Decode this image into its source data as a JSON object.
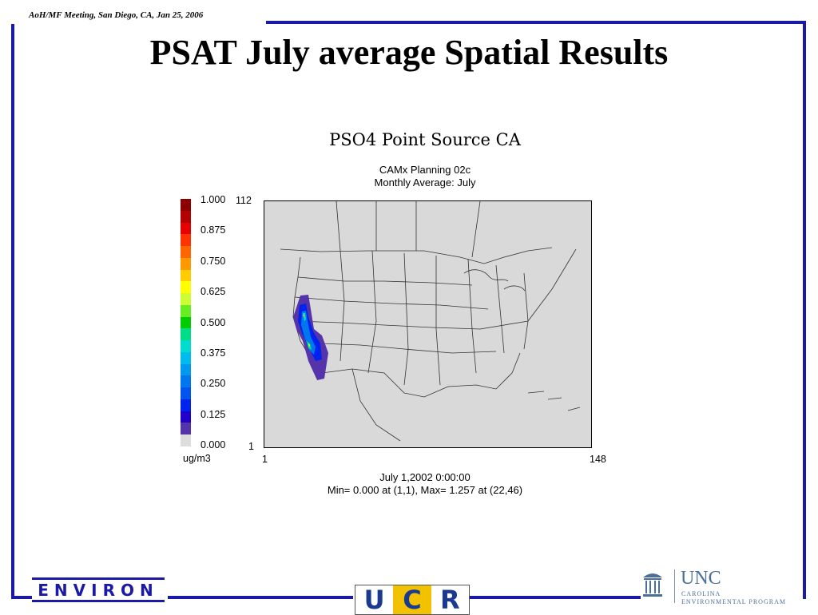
{
  "header": {
    "meeting_note": "AoH/MF Meeting, San Diego, CA,  Jan 25, 2006",
    "title": "PSAT July average Spatial Results"
  },
  "map": {
    "title": "PSO4 Point Source CA",
    "subtitle_1": "CAMx Planning 02c",
    "subtitle_2": "Monthly Average: July",
    "grid_x_min": "1",
    "grid_x_max": "148",
    "grid_y_min": "1",
    "grid_y_max": "112",
    "timestamp": "July 1,2002 0:00:00",
    "stats": "Min=  0.000 at (1,1), Max=  1.257 at (22,46)",
    "legend": {
      "unit": "ug/m3",
      "labels": [
        "1.000",
        "0.875",
        "0.750",
        "0.625",
        "0.500",
        "0.375",
        "0.250",
        "0.125",
        "0.000"
      ],
      "colors": [
        "#8b0000",
        "#b30000",
        "#e60000",
        "#ff3300",
        "#ff6600",
        "#ff9900",
        "#ffcc00",
        "#ffff00",
        "#ccff33",
        "#66ee22",
        "#00cc00",
        "#00dd88",
        "#00ddcc",
        "#00bbee",
        "#0099ee",
        "#0077ee",
        "#0055ee",
        "#0022ee",
        "#2200cc",
        "#5533aa",
        "#dddddd"
      ]
    }
  },
  "logos": {
    "environ": "ENVIRON",
    "ucr": [
      "U",
      "C",
      "R"
    ],
    "unc_big": "UNC",
    "unc_line1": "CAROLINA",
    "unc_line2": "ENVIRONMENTAL PROGRAM"
  }
}
